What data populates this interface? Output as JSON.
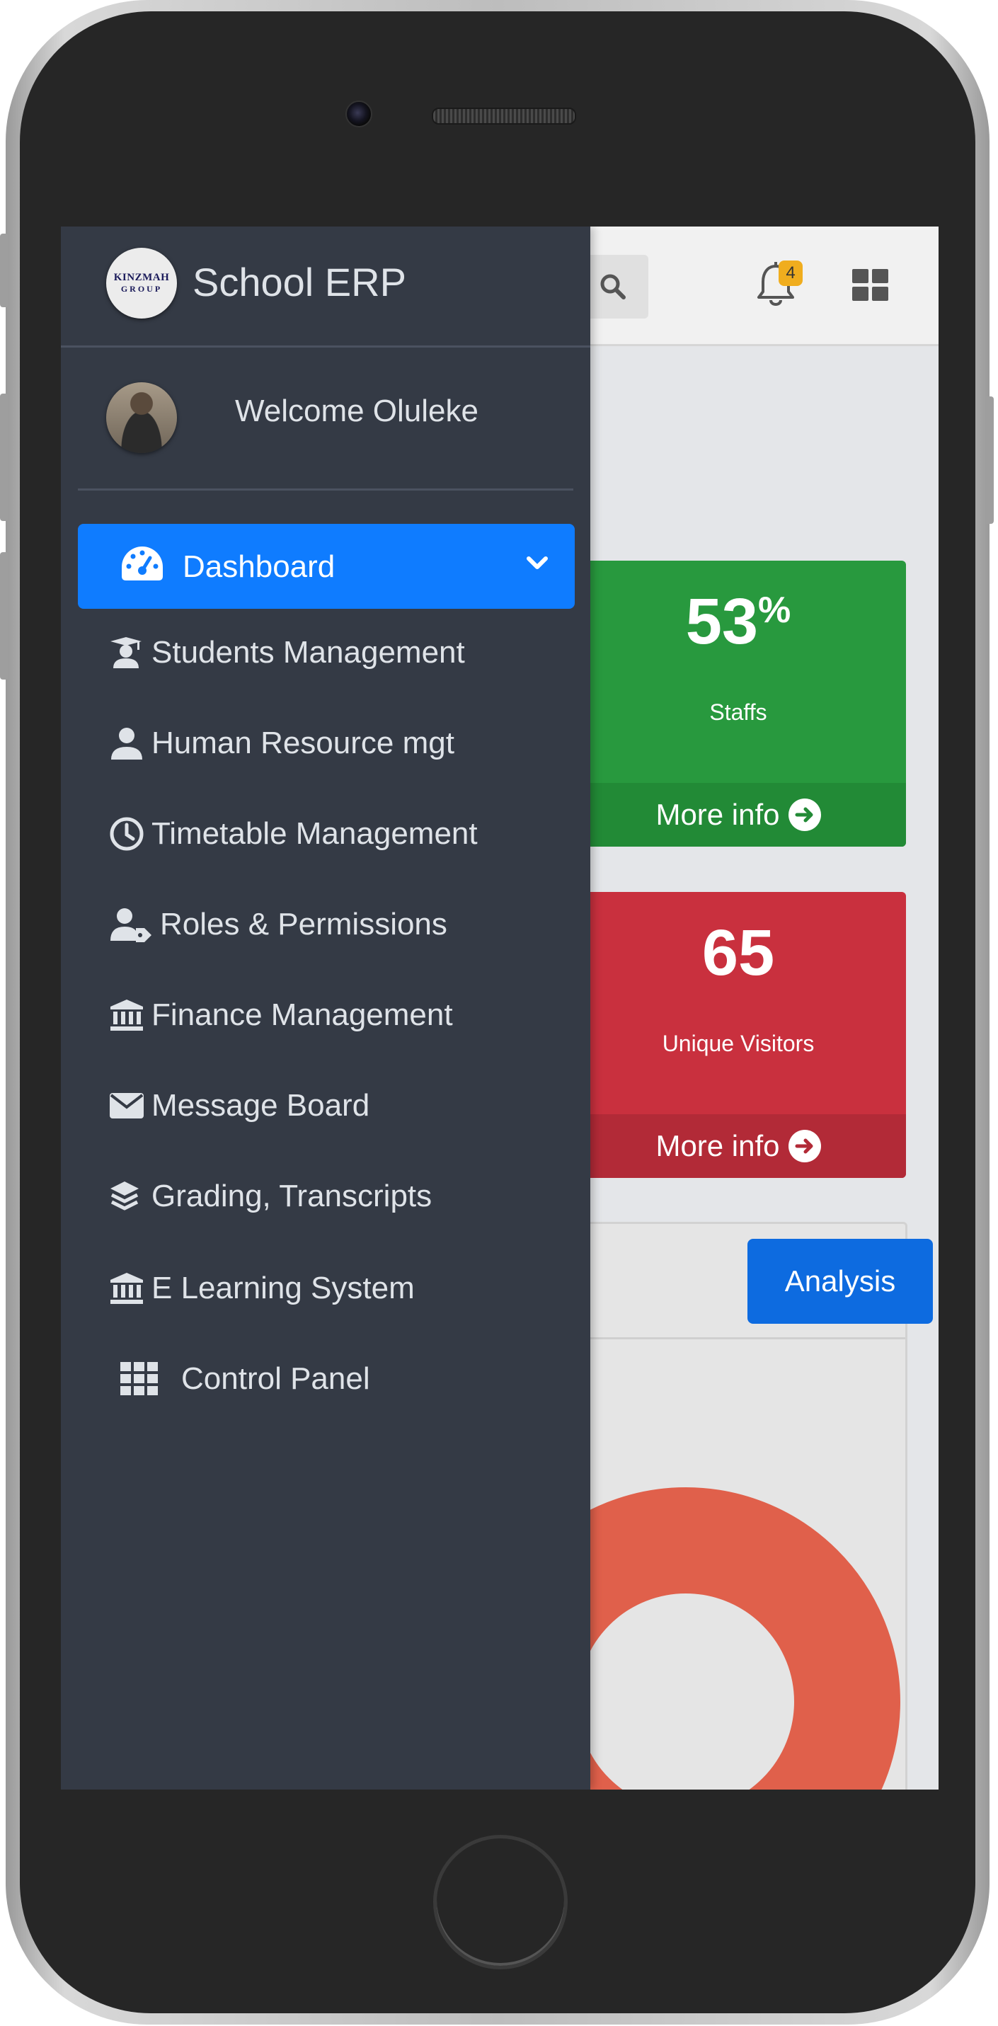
{
  "app": {
    "title": "School ERP",
    "logo_line1": "KINZMAH",
    "logo_line2": "GROUP"
  },
  "user": {
    "welcome": "Welcome Oluleke"
  },
  "header": {
    "notification_count": "4"
  },
  "sidebar": {
    "active": {
      "label": "Dashboard",
      "icon": "dashboard-gauge-icon"
    },
    "items": [
      {
        "label": "Students Management",
        "icon": "graduation-cap-icon"
      },
      {
        "label": "Human Resource mgt",
        "icon": "user-icon"
      },
      {
        "label": "Timetable Management",
        "icon": "clock-icon"
      },
      {
        "label": "Roles & Permissions",
        "icon": "user-tag-icon"
      },
      {
        "label": "Finance Management",
        "icon": "bank-icon"
      },
      {
        "label": "Message Board",
        "icon": "envelope-icon"
      },
      {
        "label": "Grading, Transcripts",
        "icon": "layers-icon"
      },
      {
        "label": "E Learning System",
        "icon": "bank-icon"
      },
      {
        "label": "Control Panel",
        "icon": "grid-icon"
      }
    ]
  },
  "cards": [
    {
      "value": "53",
      "suffix": "%",
      "label": "Staffs",
      "more": "More info",
      "color": "#28993e",
      "footer_color": "#228a36"
    },
    {
      "value": "65",
      "suffix": "",
      "label": "Unique Visitors",
      "more": "More info",
      "color": "#c9303e",
      "footer_color": "#b22a37"
    }
  ],
  "panel": {
    "button": "Analysis",
    "donut_color": "#e0604b"
  }
}
